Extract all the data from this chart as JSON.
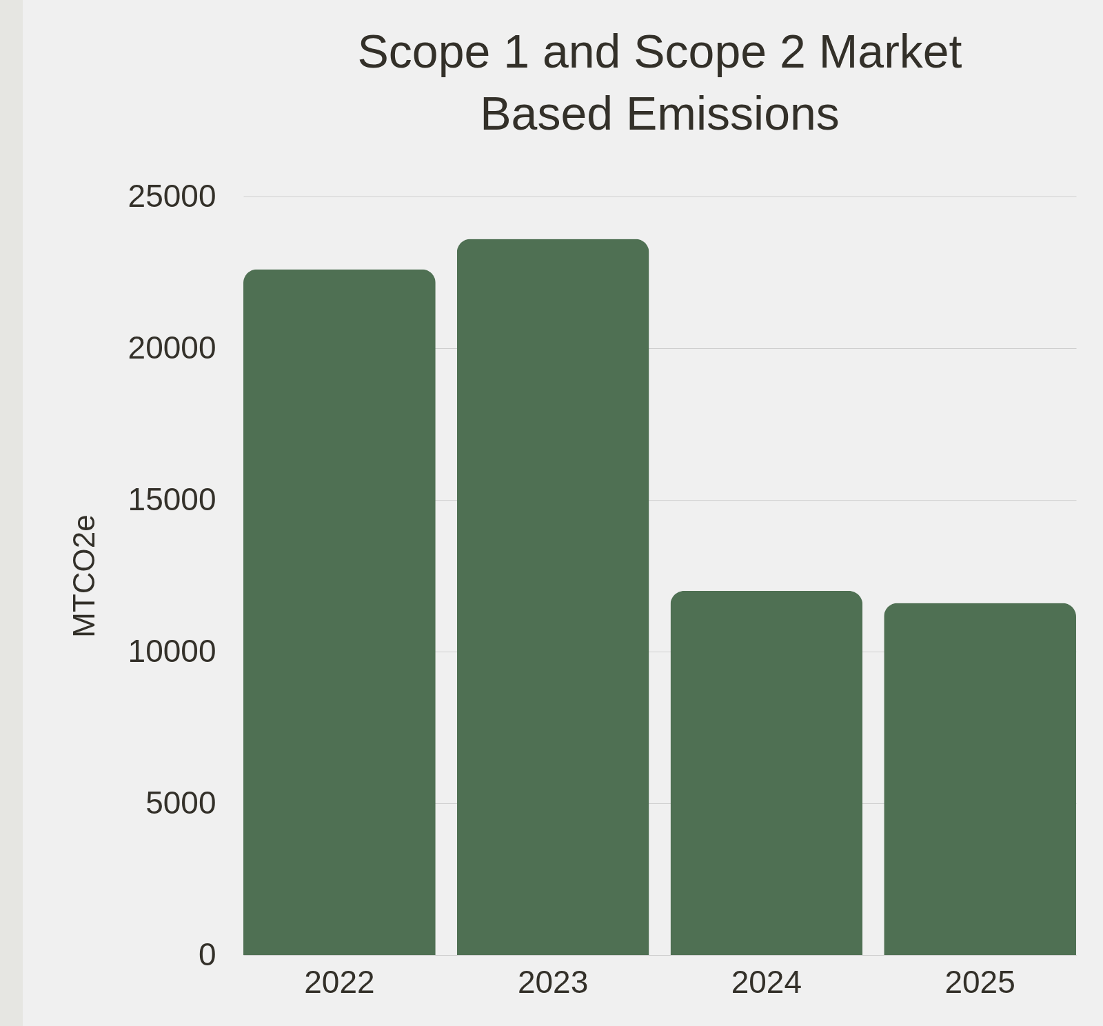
{
  "chart_data": {
    "type": "bar",
    "title": "Scope 1 and Scope 2 Market Based Emissions",
    "ylabel": "MTCO2e",
    "categories": [
      "2022",
      "2023",
      "2024",
      "2025"
    ],
    "values": [
      22600,
      23600,
      12000,
      11600
    ],
    "color": "#4f7053",
    "ylim": [
      0,
      25000
    ],
    "yticks": [
      0,
      5000,
      10000,
      15000,
      20000,
      25000
    ],
    "grid": "y"
  }
}
